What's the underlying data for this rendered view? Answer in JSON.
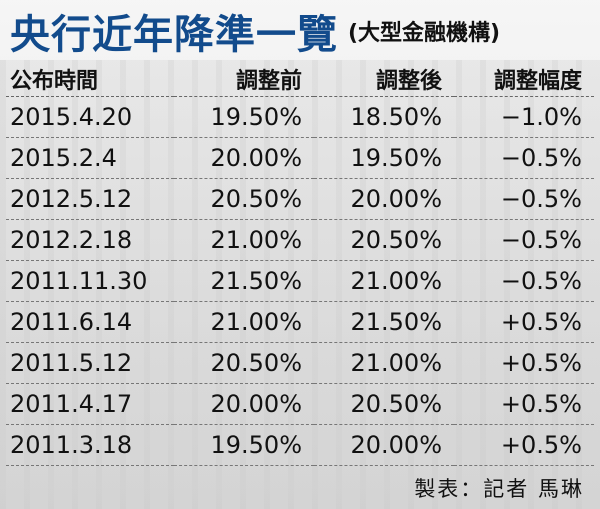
{
  "title": {
    "main": "央行近年降準一覽",
    "sub": "(大型金融機構)"
  },
  "table": {
    "headers": [
      "公布時間",
      "調整前",
      "調整後",
      "調整幅度"
    ],
    "rows": [
      [
        "2015.4.20",
        "19.50%",
        "18.50%",
        "−1.0%"
      ],
      [
        "2015.2.4",
        "20.00%",
        "19.50%",
        "−0.5%"
      ],
      [
        "2012.5.12",
        "20.50%",
        "20.00%",
        "−0.5%"
      ],
      [
        "2012.2.18",
        "21.00%",
        "20.50%",
        "−0.5%"
      ],
      [
        "2011.11.30",
        "21.50%",
        "21.00%",
        "−0.5%"
      ],
      [
        "2011.6.14",
        "21.00%",
        "21.50%",
        "+0.5%"
      ],
      [
        "2011.5.12",
        "20.50%",
        "21.00%",
        "+0.5%"
      ],
      [
        "2011.4.17",
        "20.00%",
        "20.50%",
        "+0.5%"
      ],
      [
        "2011.3.18",
        "19.50%",
        "20.00%",
        "+0.5%"
      ]
    ]
  },
  "credit": "製表：記者 馬琳",
  "colors": {
    "title": "#124b8c",
    "text": "#111111",
    "divider": "#777777"
  }
}
